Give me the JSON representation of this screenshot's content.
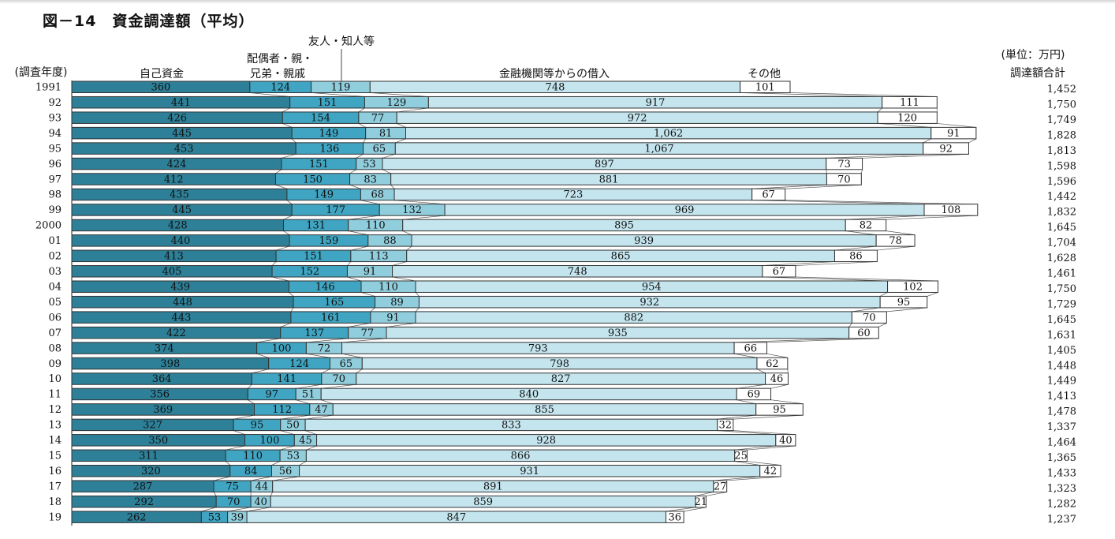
{
  "figure": {
    "title": "図－14　資金調達額（平均）",
    "unit_label": "(単位：万円)",
    "total_header": "調達額合計",
    "year_header": "(調査年度)"
  },
  "colors": {
    "own_funds": "#2d8098",
    "family": "#3fa5c2",
    "friends": "#91cedd",
    "loans": "#c4e5ee",
    "other": "#ffffff",
    "outline": "#333333",
    "background": "#ffffff"
  },
  "chart_data": {
    "type": "bar",
    "orientation": "horizontal",
    "stacked": true,
    "title": "図－14　資金調達額（平均）",
    "unit": "(単位：万円)",
    "categories": [
      "1991",
      "92",
      "93",
      "94",
      "95",
      "96",
      "97",
      "98",
      "99",
      "2000",
      "01",
      "02",
      "03",
      "04",
      "05",
      "06",
      "07",
      "08",
      "09",
      "10",
      "11",
      "12",
      "13",
      "14",
      "15",
      "16",
      "17",
      "18",
      "19"
    ],
    "series": [
      {
        "name": "自己資金",
        "color": "#2d8098",
        "values": [
          360,
          441,
          426,
          445,
          453,
          424,
          412,
          435,
          445,
          428,
          440,
          413,
          405,
          439,
          448,
          443,
          422,
          374,
          398,
          364,
          356,
          369,
          327,
          350,
          311,
          320,
          287,
          292,
          262
        ]
      },
      {
        "name": "配偶者・親・兄弟・親戚",
        "color": "#3fa5c2",
        "values": [
          124,
          151,
          154,
          149,
          136,
          151,
          150,
          149,
          177,
          131,
          159,
          151,
          152,
          146,
          165,
          161,
          137,
          100,
          124,
          141,
          97,
          112,
          95,
          100,
          110,
          84,
          75,
          70,
          53
        ]
      },
      {
        "name": "友人・知人等",
        "color": "#91cedd",
        "values": [
          119,
          129,
          77,
          81,
          65,
          53,
          83,
          68,
          132,
          110,
          88,
          113,
          91,
          110,
          89,
          91,
          77,
          72,
          65,
          70,
          51,
          47,
          50,
          45,
          53,
          56,
          44,
          40,
          39
        ]
      },
      {
        "name": "金融機関等からの借入",
        "color": "#c4e5ee",
        "values": [
          748,
          917,
          972,
          1062,
          1067,
          897,
          881,
          723,
          969,
          895,
          939,
          865,
          748,
          954,
          932,
          882,
          935,
          793,
          798,
          827,
          840,
          855,
          833,
          928,
          866,
          931,
          891,
          859,
          847
        ]
      },
      {
        "name": "その他",
        "color": "#ffffff",
        "values": [
          101,
          111,
          120,
          91,
          92,
          73,
          70,
          67,
          108,
          82,
          78,
          86,
          67,
          102,
          95,
          70,
          60,
          66,
          62,
          46,
          69,
          95,
          32,
          40,
          25,
          42,
          27,
          21,
          36
        ]
      }
    ],
    "value_labels": [
      [
        "360",
        "124",
        "119",
        "748",
        "101"
      ],
      [
        "441",
        "151",
        "129",
        "917",
        "111"
      ],
      [
        "426",
        "154",
        "77",
        "972",
        "120"
      ],
      [
        "445",
        "149",
        "81",
        "1,062",
        "91"
      ],
      [
        "453",
        "136",
        "65",
        "1,067",
        "92"
      ],
      [
        "424",
        "151",
        "53",
        "897",
        "73"
      ],
      [
        "412",
        "150",
        "83",
        "881",
        "70"
      ],
      [
        "435",
        "149",
        "68",
        "723",
        "67"
      ],
      [
        "445",
        "177",
        "132",
        "969",
        "108"
      ],
      [
        "428",
        "131",
        "110",
        "895",
        "82"
      ],
      [
        "440",
        "159",
        "88",
        "939",
        "78"
      ],
      [
        "413",
        "151",
        "113",
        "865",
        "86"
      ],
      [
        "405",
        "152",
        "91",
        "748",
        "67"
      ],
      [
        "439",
        "146",
        "110",
        "954",
        "102"
      ],
      [
        "448",
        "165",
        "89",
        "932",
        "95"
      ],
      [
        "443",
        "161",
        "91",
        "882",
        "70"
      ],
      [
        "422",
        "137",
        "77",
        "935",
        "60"
      ],
      [
        "374",
        "100",
        "72",
        "793",
        "66"
      ],
      [
        "398",
        "124",
        "65",
        "798",
        "62"
      ],
      [
        "364",
        "141",
        "70",
        "827",
        "46"
      ],
      [
        "356",
        "97",
        "51",
        "840",
        "69"
      ],
      [
        "369",
        "112",
        "47",
        "855",
        "95"
      ],
      [
        "327",
        "95",
        "50",
        "833",
        "32"
      ],
      [
        "350",
        "100",
        "45",
        "928",
        "40"
      ],
      [
        "311",
        "110",
        "53",
        "866",
        "25"
      ],
      [
        "320",
        "84",
        "56",
        "931",
        "42"
      ],
      [
        "287",
        "75",
        "44",
        "891",
        "27"
      ],
      [
        "292",
        "70",
        "40",
        "859",
        "21"
      ],
      [
        "262",
        "53",
        "39",
        "847",
        "36"
      ]
    ],
    "totals": [
      "1,452",
      "1,750",
      "1,749",
      "1,828",
      "1,813",
      "1,598",
      "1,596",
      "1,442",
      "1,832",
      "1,645",
      "1,704",
      "1,628",
      "1,461",
      "1,750",
      "1,729",
      "1,645",
      "1,631",
      "1,405",
      "1,448",
      "1,449",
      "1,413",
      "1,478",
      "1,337",
      "1,464",
      "1,365",
      "1,433",
      "1,323",
      "1,282",
      "1,237"
    ],
    "header_labels": {
      "own_funds": "自己資金",
      "family_line1": "配偶者・親・",
      "family_line2": "兄弟・親戚",
      "friends": "友人・知人等",
      "loans": "金融機関等からの借入",
      "other": "その他"
    },
    "connector_lines": true,
    "grid": false,
    "legend": "top (column headers)"
  }
}
